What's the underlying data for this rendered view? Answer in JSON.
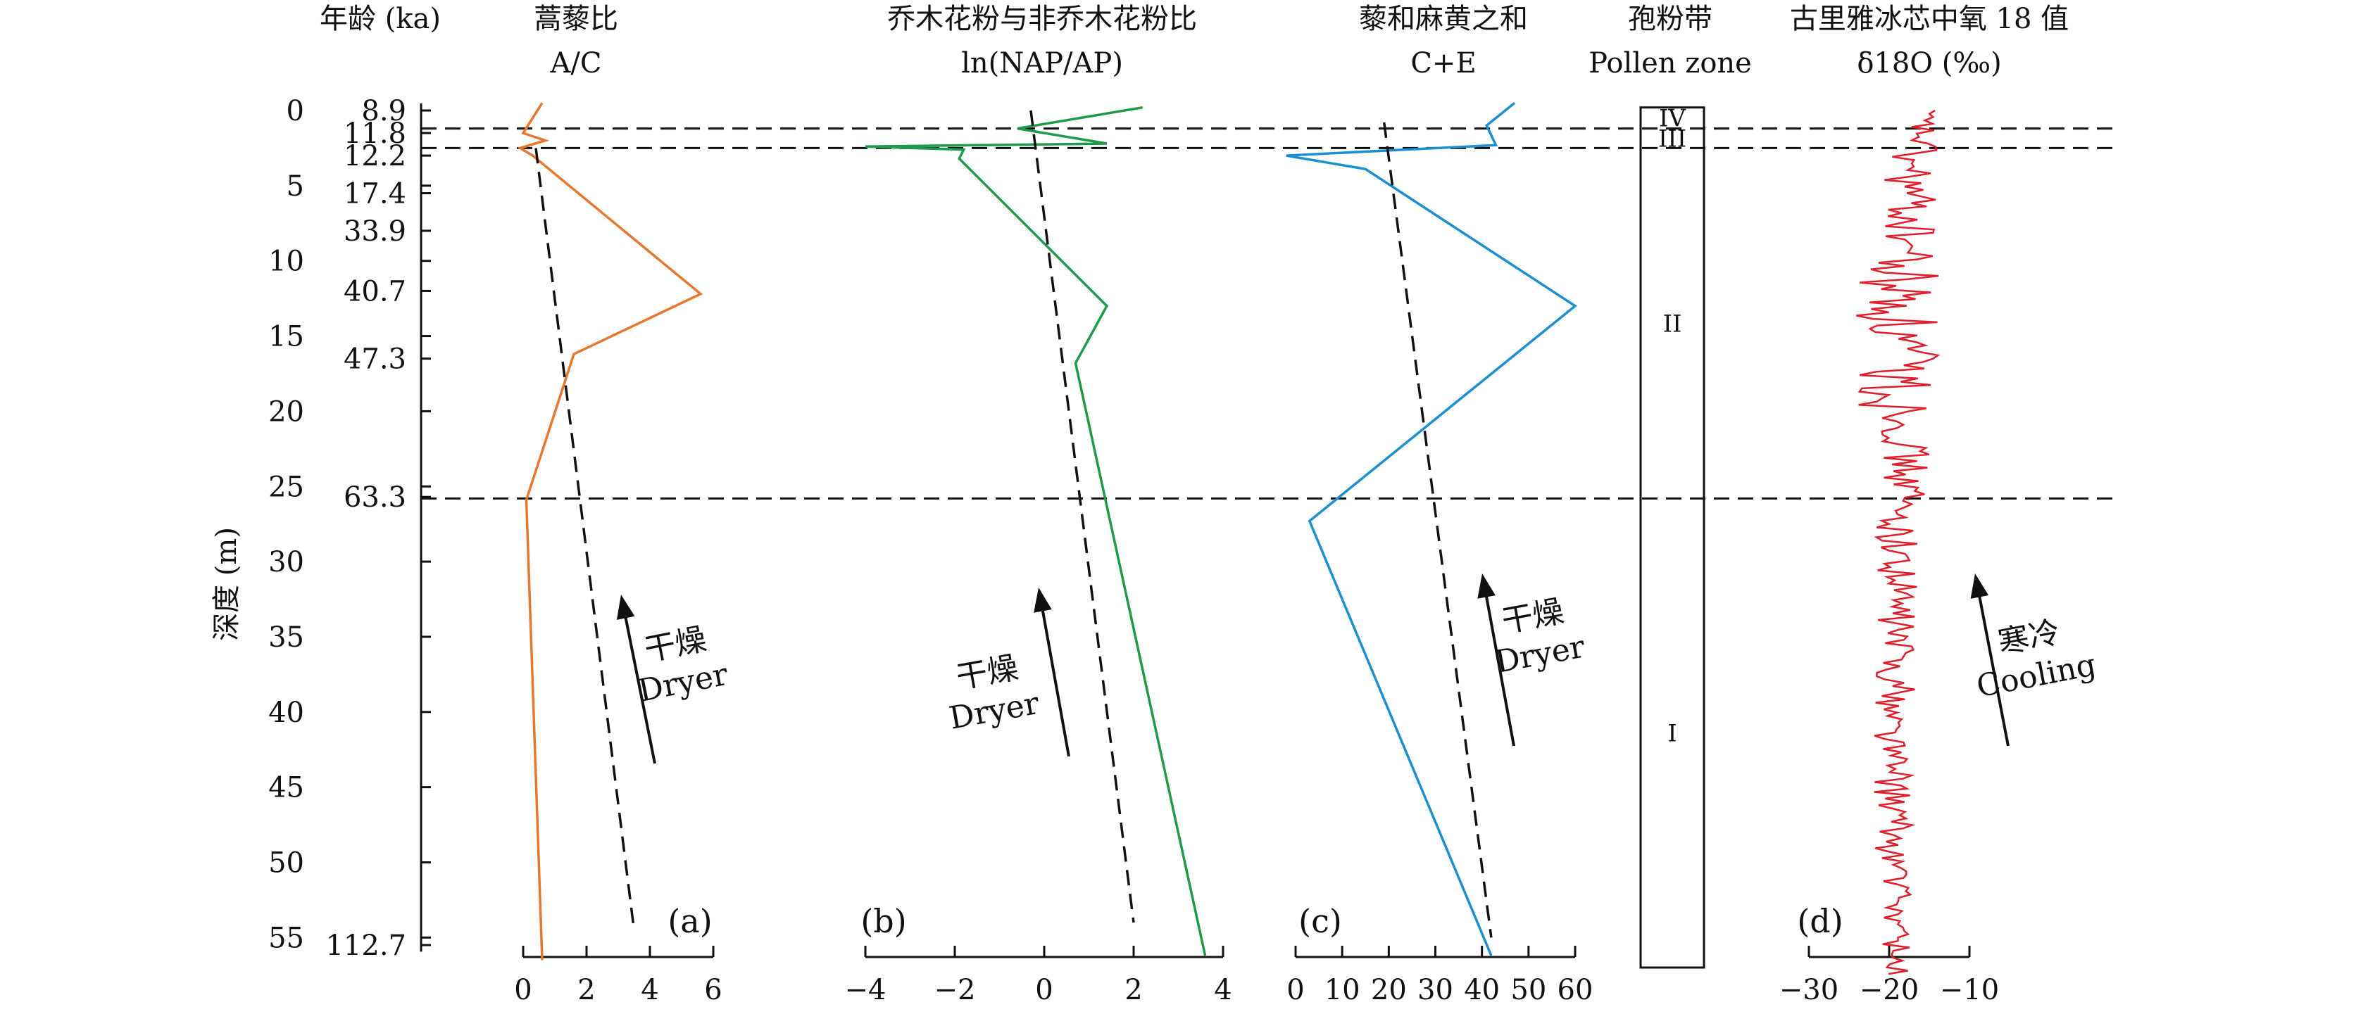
{
  "chart_data": {
    "type": "line",
    "depth_axis": {
      "label": "深度 (m)",
      "range": [
        0,
        55
      ],
      "ticks": [
        0,
        5,
        10,
        15,
        20,
        25,
        30,
        35,
        40,
        45,
        50,
        55
      ]
    },
    "age_axis": {
      "label": "年龄 (ka)",
      "marks": [
        {
          "depth": 0,
          "age": "8.9"
        },
        {
          "depth": 1.5,
          "age": "11.8"
        },
        {
          "depth": 3,
          "age": "12.2"
        },
        {
          "depth": 5.5,
          "age": "17.4"
        },
        {
          "depth": 8,
          "age": "33.9"
        },
        {
          "depth": 12,
          "age": "40.7"
        },
        {
          "depth": 16.5,
          "age": "47.3"
        },
        {
          "depth": 25.7,
          "age": "63.3"
        },
        {
          "depth": 55.5,
          "age": "112.7"
        }
      ]
    },
    "boundaries": [
      1.2,
      2.5,
      25.8
    ],
    "panels": [
      {
        "id": "a",
        "tag": "(a)",
        "title_cn": "蒿藜比",
        "title_en": "A/C",
        "xlim": [
          0,
          6
        ],
        "xticks": [
          "0",
          "2",
          "4",
          "6"
        ],
        "color": "#e8772e",
        "series": [
          {
            "x": 0.6,
            "d": -0.5
          },
          {
            "x": 0.0,
            "d": 1.5
          },
          {
            "x": 0.7,
            "d": 2.0
          },
          {
            "x": -0.1,
            "d": 2.5
          },
          {
            "x": 0.3,
            "d": 3.0
          },
          {
            "x": 5.6,
            "d": 12.2
          },
          {
            "x": 1.6,
            "d": 16.2
          },
          {
            "x": 0.1,
            "d": 25.9
          },
          {
            "x": 0.6,
            "d": 56.5
          }
        ],
        "trend": [
          {
            "x": 0.4,
            "d": 2.5
          },
          {
            "x": 3.5,
            "d": 54.5
          }
        ],
        "arrow_cn": "干燥",
        "arrow_en": "Dryer"
      },
      {
        "id": "b",
        "tag": "(b)",
        "title_cn": "乔木花粉与非乔木花粉比",
        "title_en": "ln(NAP/AP)",
        "xlim": [
          -4,
          4
        ],
        "xticks": [
          "−4",
          "−2",
          "0",
          "2",
          "4"
        ],
        "color": "#1e9a4a",
        "series": [
          {
            "x": 2.2,
            "d": -0.2
          },
          {
            "x": -0.6,
            "d": 1.2
          },
          {
            "x": 1.4,
            "d": 2.2
          },
          {
            "x": -4.0,
            "d": 2.4
          },
          {
            "x": -1.8,
            "d": 2.6
          },
          {
            "x": -1.9,
            "d": 3.2
          },
          {
            "x": 1.4,
            "d": 13.0
          },
          {
            "x": 0.7,
            "d": 16.8
          },
          {
            "x": 3.6,
            "d": 56.2
          }
        ],
        "trend": [
          {
            "x": -0.3,
            "d": 0.0
          },
          {
            "x": 2.0,
            "d": 54.0
          }
        ],
        "arrow_cn": "干燥",
        "arrow_en": "Dryer"
      },
      {
        "id": "c",
        "tag": "(c)",
        "title_cn": "藜和麻黄之和",
        "title_en": "C+E",
        "xlim": [
          0,
          60
        ],
        "xticks": [
          "0",
          "10",
          "20",
          "30",
          "40",
          "50",
          "60"
        ],
        "color": "#1b8fcf",
        "series": [
          {
            "x": 47,
            "d": -0.5
          },
          {
            "x": 41,
            "d": 1.0
          },
          {
            "x": 43,
            "d": 2.3
          },
          {
            "x": -2,
            "d": 3.0
          },
          {
            "x": 15,
            "d": 3.9
          },
          {
            "x": 60,
            "d": 13.0
          },
          {
            "x": 3,
            "d": 27.3
          },
          {
            "x": 42,
            "d": 56.2
          }
        ],
        "trend": [
          {
            "x": 19,
            "d": 0.8
          },
          {
            "x": 42,
            "d": 55.0
          }
        ],
        "arrow_cn": "干燥",
        "arrow_en": "Dryer"
      },
      {
        "id": "d",
        "tag": "(d)",
        "title_cn": "古里雅冰芯中氧 18 值",
        "title_en": "δ18O (‰)",
        "xlim": [
          -30,
          -10
        ],
        "xticks": [
          "−30",
          "−20",
          "−10"
        ],
        "color": "#e11d2a",
        "series_seed": 18,
        "arrow_cn": "寒冷",
        "arrow_en": "Cooling"
      }
    ],
    "pollen_zone": {
      "title_cn": "孢粉带",
      "title_en": "Pollen zone",
      "zones": [
        {
          "label": "IV",
          "top": 0,
          "bottom": 1.2
        },
        {
          "label": "III",
          "top": 1.2,
          "bottom": 2.5
        },
        {
          "label": "II",
          "top": 2.5,
          "bottom": 25.8
        },
        {
          "label": "I",
          "top": 25.8,
          "bottom": 57
        }
      ]
    }
  }
}
